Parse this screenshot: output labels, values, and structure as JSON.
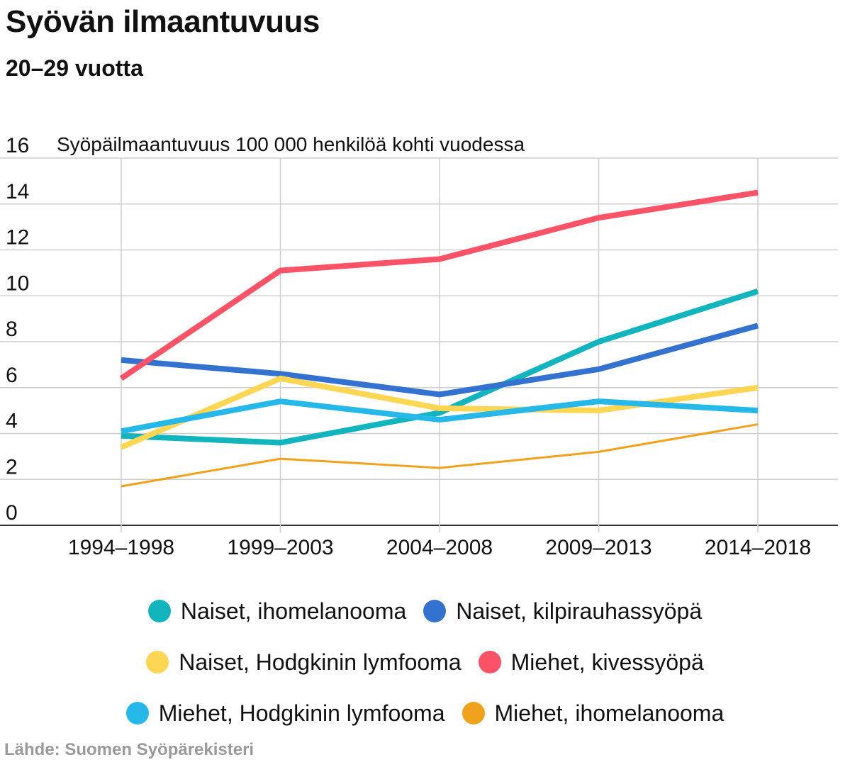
{
  "header": {
    "title": "Syövän ilmaantuvuus",
    "subtitle": "20–29 vuotta"
  },
  "footer": {
    "source": "Lähde: Suomen Syöpärekisteri"
  },
  "chart_data": {
    "type": "line",
    "title": "Syövän ilmaantuvuus",
    "subtitle": "20–29 vuotta",
    "ylabel": "Syöpäilmaantuvuus 100 000 henkilöä kohti vuodessa",
    "xlabel": "",
    "ylim": [
      0,
      16
    ],
    "yticks": [
      0,
      2,
      4,
      6,
      8,
      10,
      12,
      14,
      16
    ],
    "grid": true,
    "legend": "bottom",
    "categories": [
      "1994–1998",
      "1999–2003",
      "2004–2008",
      "2009–2013",
      "2014–2018"
    ],
    "series": [
      {
        "name": "Naiset, ihomelanooma",
        "color": "#12b5bd",
        "values": [
          3.9,
          3.6,
          4.9,
          8.0,
          10.2
        ]
      },
      {
        "name": "Naiset, kilpirauhassyöpä",
        "color": "#3372cf",
        "values": [
          7.2,
          6.6,
          5.7,
          6.8,
          8.7
        ]
      },
      {
        "name": "Naiset, Hodgkinin lymfooma",
        "color": "#fdd654",
        "values": [
          3.4,
          6.4,
          5.1,
          5.0,
          6.0
        ]
      },
      {
        "name": "Miehet, kivessyöpä",
        "color": "#fa5267",
        "values": [
          6.4,
          11.1,
          11.6,
          13.4,
          14.5
        ]
      },
      {
        "name": "Miehet, Hodgkinin lymfooma",
        "color": "#25b8e8",
        "values": [
          4.1,
          5.4,
          4.6,
          5.4,
          5.0
        ]
      },
      {
        "name": "Miehet, ihomelanooma",
        "color": "#f0a21c",
        "values": [
          1.7,
          2.9,
          2.5,
          3.2,
          4.4
        ]
      }
    ]
  }
}
